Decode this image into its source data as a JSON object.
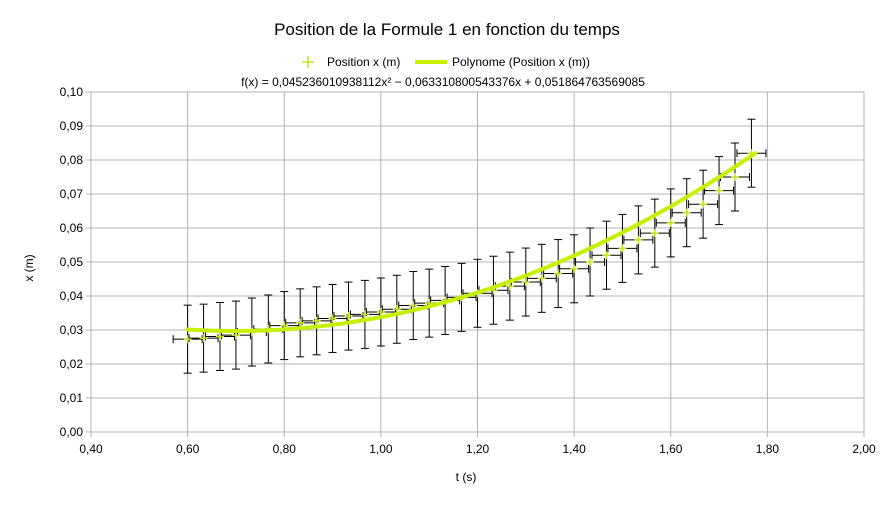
{
  "chart_data": {
    "type": "scatter",
    "title": "Position de la Formule 1 en fonction du temps",
    "xlabel": "t (s)",
    "ylabel": "x (m)",
    "xlim": [
      0.4,
      2.0
    ],
    "ylim": [
      0.0,
      0.1
    ],
    "x_ticks": [
      "0,40",
      "0,60",
      "0,80",
      "1,00",
      "1,20",
      "1,40",
      "1,60",
      "1,80",
      "2,00"
    ],
    "y_ticks": [
      "0,00",
      "0,01",
      "0,02",
      "0,03",
      "0,04",
      "0,05",
      "0,06",
      "0,07",
      "0,08",
      "0,09",
      "0,10"
    ],
    "grid": true,
    "legend_position": "top",
    "series": [
      {
        "name": "Position x (m)",
        "marker": "plus",
        "color": "#c5e324",
        "x_error": 0.03,
        "y_error": 0.01,
        "x": [
          0.6,
          0.633,
          0.667,
          0.7,
          0.733,
          0.767,
          0.8,
          0.833,
          0.867,
          0.9,
          0.933,
          0.967,
          1.0,
          1.033,
          1.067,
          1.1,
          1.133,
          1.167,
          1.2,
          1.233,
          1.267,
          1.3,
          1.333,
          1.367,
          1.4,
          1.433,
          1.467,
          1.5,
          1.533,
          1.567,
          1.6,
          1.633,
          1.667,
          1.7,
          1.733,
          1.767
        ],
        "y": [
          0.0273,
          0.0276,
          0.0281,
          0.0285,
          0.0294,
          0.0303,
          0.0313,
          0.0321,
          0.0327,
          0.0334,
          0.0341,
          0.0346,
          0.0353,
          0.0361,
          0.0372,
          0.0379,
          0.0387,
          0.0396,
          0.0408,
          0.0417,
          0.0429,
          0.0441,
          0.0452,
          0.0466,
          0.048,
          0.05,
          0.052,
          0.054,
          0.0565,
          0.0585,
          0.0615,
          0.0645,
          0.067,
          0.071,
          0.075,
          0.082
        ]
      },
      {
        "name": "Polynome (Position x (m))",
        "type": "trendline",
        "color": "#c5f000",
        "coefficients": [
          0.045236010938112,
          -0.063310800543376,
          0.051864763569085
        ],
        "x_range": [
          0.6,
          1.775
        ]
      }
    ],
    "annotations": [
      "f(x) = 0,045236010938112x² − 0,063310800543376x + 0,051864763569085"
    ]
  }
}
